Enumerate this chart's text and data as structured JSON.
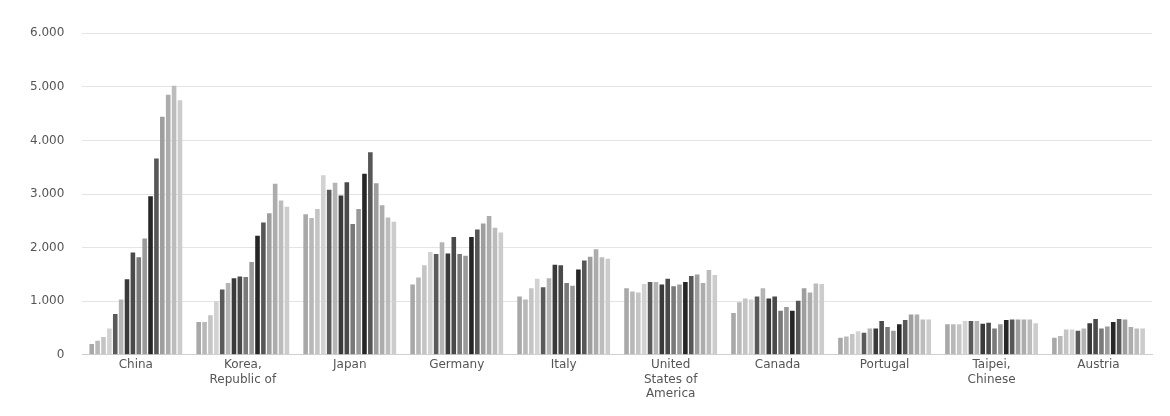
{
  "chart_data": {
    "type": "bar",
    "categories": [
      "China",
      "Korea, Republic of",
      "Japan",
      "Germany",
      "Italy",
      "United States of America",
      "Canada",
      "Portugal",
      "Taipei, Chinese",
      "Austria"
    ],
    "ylim": [
      0,
      6000
    ],
    "yticks": [
      {
        "value": 0,
        "label": "0"
      },
      {
        "value": 1000,
        "label": "1.000"
      },
      {
        "value": 2000,
        "label": "2.000"
      },
      {
        "value": 3000,
        "label": "3.000"
      },
      {
        "value": 4000,
        "label": "4.000"
      },
      {
        "value": 5000,
        "label": "5.000"
      },
      {
        "value": 6000,
        "label": "6.000"
      }
    ],
    "grid": "y",
    "legend": false,
    "series": [
      {
        "color": "#a8a8a8",
        "values": [
          200,
          610,
          2620,
          1310,
          1090,
          1240,
          780,
          320,
          570,
          320
        ]
      },
      {
        "color": "#b8b8b8",
        "values": [
          260,
          610,
          2550,
          1440,
          1030,
          1180,
          980,
          340,
          570,
          350
        ]
      },
      {
        "color": "#c4c4c4",
        "values": [
          330,
          740,
          2720,
          1670,
          1240,
          1160,
          1050,
          390,
          570,
          470
        ]
      },
      {
        "color": "#d2d2d2",
        "values": [
          490,
          1000,
          3350,
          1920,
          1420,
          1320,
          1030,
          440,
          630,
          470
        ]
      },
      {
        "color": "#5a5a5a",
        "values": [
          760,
          1220,
          3080,
          1880,
          1260,
          1360,
          1090,
          410,
          630,
          450
        ]
      },
      {
        "color": "#b4b4b4",
        "values": [
          1030,
          1340,
          3210,
          2100,
          1430,
          1360,
          1240,
          490,
          630,
          490
        ]
      },
      {
        "color": "#3a3a3a",
        "values": [
          1410,
          1430,
          2970,
          1890,
          1680,
          1310,
          1050,
          490,
          580,
          590
        ]
      },
      {
        "color": "#4a4a4a",
        "values": [
          1910,
          1460,
          3220,
          2200,
          1670,
          1420,
          1090,
          630,
          600,
          670
        ]
      },
      {
        "color": "#7a7a7a",
        "values": [
          1820,
          1450,
          2440,
          1880,
          1340,
          1280,
          820,
          520,
          490,
          490
        ]
      },
      {
        "color": "#9a9a9a",
        "values": [
          2170,
          1730,
          2720,
          1850,
          1290,
          1310,
          890,
          450,
          570,
          530
        ]
      },
      {
        "color": "#262626",
        "values": [
          2960,
          2220,
          3380,
          2200,
          1590,
          1360,
          820,
          570,
          650,
          610
        ]
      },
      {
        "color": "#575757",
        "values": [
          3660,
          2470,
          3780,
          2340,
          1760,
          1470,
          1010,
          650,
          660,
          670
        ]
      },
      {
        "color": "#9e9e9e",
        "values": [
          4440,
          2640,
          3200,
          2450,
          1830,
          1500,
          1240,
          750,
          660,
          660
        ]
      },
      {
        "color": "#acacac",
        "values": [
          4850,
          3190,
          2790,
          2590,
          1970,
          1340,
          1160,
          750,
          660,
          520
        ]
      },
      {
        "color": "#bcbcbc",
        "values": [
          5020,
          2880,
          2560,
          2370,
          1820,
          1580,
          1330,
          660,
          660,
          490
        ]
      },
      {
        "color": "#cccccc",
        "values": [
          4750,
          2760,
          2480,
          2280,
          1790,
          1490,
          1320,
          660,
          590,
          490
        ]
      }
    ]
  }
}
